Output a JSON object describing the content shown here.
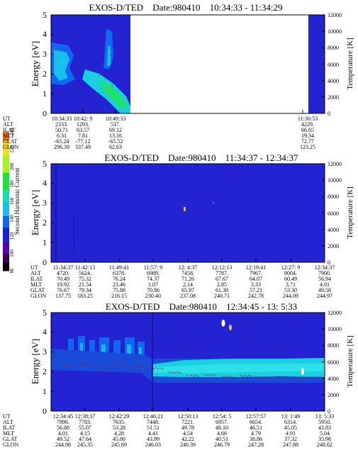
{
  "panels": [
    {
      "title_prefix": "EXOS-D/TED",
      "date_label": "Date:980410",
      "time_range": "10:34:33 - 11:34:29",
      "info_labels": [
        "UT",
        "ALT",
        "ILAT",
        "MLT",
        "GLAT",
        "GLON"
      ],
      "columns": [
        {
          "UT": "10:34:33",
          "ALT": "2333.",
          "ILAT": "50.71",
          "MLT": "6.31",
          "GLAT": "-65.24",
          "GLON": "296.39"
        },
        {
          "UT": "10:42: 9",
          "ALT": "1293.",
          "ILAT": "63.57",
          "MLT": "7.81",
          "GLAT": "-77.12",
          "GLON": "337.49"
        },
        {
          "UT": "10:49:33",
          "ALT": "537.",
          "ILAT": "69.12",
          "MLT": "13.16",
          "GLAT": "-65.52",
          "GLON": "62.63"
        },
        {
          "UT": "11:30:53",
          "ALT": "4229.",
          "ILAT": "66.65",
          "MLT": "19.34",
          "GLAT": "72.77",
          "GLON": "123.25"
        }
      ]
    },
    {
      "title_prefix": "EXOS-D/TED",
      "date_label": "Date:980410",
      "time_range": "11:34:37 - 12:34:37",
      "info_labels": [
        "UT",
        "ALT",
        "ILAT",
        "MLT",
        "GLAT",
        "GLON"
      ],
      "columns": [
        {
          "UT": "11:34:37",
          "ALT": "4720.",
          "ILAT": "70.49",
          "MLT": "19.92",
          "GLAT": "76.67",
          "GLON": "137.75"
        },
        {
          "UT": "11:42:13",
          "ALT": "5624.",
          "ILAT": "75.32",
          "MLT": "21.54",
          "GLAT": "79.34",
          "GLON": "183.25"
        },
        {
          "UT": "11:49:41",
          "ALT": "6378.",
          "ILAT": "76.24",
          "MLT": "23.46",
          "GLAT": "75.88",
          "GLON": "216.15"
        },
        {
          "UT": "11:57: 9",
          "ALT": "6989.",
          "ILAT": "74.37",
          "MLT": "1.07",
          "GLAT": "70.86",
          "GLON": "230.40"
        },
        {
          "UT": "12: 4:37",
          "ALT": "7458.",
          "ILAT": "71.26",
          "MLT": "2.14",
          "GLAT": "65.97",
          "GLON": "237.08"
        },
        {
          "UT": "12:12:13",
          "ALT": "7787.",
          "ILAT": "67.67",
          "MLT": "2.85",
          "GLAT": "61.38",
          "GLON": "240.71"
        },
        {
          "UT": "12:19:41",
          "ALT": "7967.",
          "ILAT": "64.07",
          "MLT": "3.33",
          "GLAT": "57.21",
          "GLON": "242.78"
        },
        {
          "UT": "12:27: 9",
          "ALT": "8004.",
          "ILAT": "60.49",
          "MLT": "3.71",
          "GLAT": "53.30",
          "GLON": "244.09"
        },
        {
          "UT": "12:34:37",
          "ALT": "7900.",
          "ILAT": "56.94",
          "MLT": "4.01",
          "GLAT": "49.58",
          "GLON": "244.97"
        }
      ]
    },
    {
      "title_prefix": "EXOS-D/TED",
      "date_label": "Date:980410",
      "time_range": "12:34:45 - 13: 5:33",
      "info_labels": [
        "UT",
        "ALT",
        "ILAT",
        "MLT",
        "GLAT",
        "GLON"
      ],
      "columns": [
        {
          "UT": "12:34:45",
          "ALT": "7896.",
          "ILAT": "56.88",
          "MLT": "4.01",
          "GLAT": "49.52",
          "GLON": "244.98"
        },
        {
          "UT": "12:38:37",
          "ALT": "7783.",
          "ILAT": "55.07",
          "MLT": "4.15",
          "GLAT": "47.64",
          "GLON": "245.35"
        },
        {
          "UT": "12:42:29",
          "ALT": "7635.",
          "ILAT": "53.28",
          "MLT": "4.28",
          "GLAT": "45.80",
          "GLON": "245.69"
        },
        {
          "UT": "12:46:21",
          "ALT": "7448.",
          "ILAT": "51.51",
          "MLT": "4.41",
          "GLAT": "43.99",
          "GLON": "246.03"
        },
        {
          "UT": "12:50:13",
          "ALT": "7221.",
          "ILAT": "49.78",
          "MLT": "4.54",
          "GLAT": "42.22",
          "GLON": "246.39"
        },
        {
          "UT": "12:54: 5",
          "ALT": "6957.",
          "ILAT": "48.10",
          "MLT": "4.66",
          "GLAT": "40.51",
          "GLON": "246.79"
        },
        {
          "UT": "12:57:57",
          "ALT": "6654.",
          "ILAT": "46.51",
          "MLT": "4.79",
          "GLAT": "38.86",
          "GLON": "247.28"
        },
        {
          "UT": "13: 1:49",
          "ALT": "6314.",
          "ILAT": "45.05",
          "MLT": "4.91",
          "GLAT": "37.32",
          "GLON": "247.88"
        },
        {
          "UT": "13: 5:33",
          "ALT": "5950.",
          "ILAT": "43.83",
          "MLT": "5.04",
          "GLAT": "35.98",
          "GLON": "248.62"
        }
      ]
    }
  ],
  "colorbar": {
    "label": "Second Harmonic Current",
    "ticks": [
      80,
      100,
      120,
      140,
      160,
      180,
      200,
      220,
      240
    ],
    "range": [
      80,
      240
    ]
  },
  "colors": {
    "background_field": "#2323d2",
    "band_cyan": "#18d0e0",
    "band_green": "#22e070",
    "mid_blue": "#1068f0",
    "dot_red": "#a01818",
    "white": "#ffffff"
  },
  "chart_data": [
    {
      "type": "heatmap",
      "title": "EXOS-D/TED   Date:980410   10:34:33 - 11:34:29",
      "ylabel": "Energy [eV]",
      "ylabel_right": "Temperature [K]",
      "ylim": [
        0,
        5
      ],
      "yticks": [
        0,
        1,
        2,
        3,
        4,
        5
      ],
      "ylim_right": [
        0,
        12000
      ],
      "yticks_right": [
        0,
        2000,
        4000,
        6000,
        8000,
        10000,
        12000
      ],
      "x_ticks": [
        "10:34:33",
        "10:42: 9",
        "10:49:33",
        "11:30:53"
      ],
      "data_gap": [
        "10:50:30",
        "11:30:53"
      ],
      "features": [
        {
          "name": "blue enhancement",
          "x_range": [
            "10:35",
            "10:39"
          ],
          "energy_range": [
            1.5,
            3.2
          ]
        },
        {
          "name": "green diagonal structure",
          "x_range": [
            "10:44",
            "10:50"
          ],
          "energy_range": [
            0.2,
            2.2
          ]
        }
      ]
    },
    {
      "type": "heatmap",
      "title": "EXOS-D/TED   Date:980410   11:34:37 - 12:34:37",
      "ylabel": "Energy [eV]",
      "ylabel_right": "Temperature [K]",
      "ylim": [
        0,
        5
      ],
      "yticks": [
        0,
        1,
        2,
        3,
        4,
        5
      ],
      "ylim_right": [
        0,
        12000
      ],
      "yticks_right": [
        0,
        2000,
        4000,
        6000,
        8000,
        10000,
        12000
      ],
      "x_ticks": [
        "11:34:37",
        "11:42:13",
        "11:49:41",
        "11:57: 9",
        "12: 4:37",
        "12:12:13",
        "12:19:41",
        "12:27: 9",
        "12:34:37"
      ],
      "features": [
        {
          "name": "uniform low level",
          "x_range": [
            "11:34:37",
            "12:34:37"
          ],
          "energy_range": [
            0,
            5
          ]
        }
      ]
    },
    {
      "type": "heatmap",
      "title": "EXOS-D/TED   Date:980410   12:34:45 - 13: 5:33",
      "ylabel": "Energy [eV]",
      "ylabel_right": "Temperature [K]",
      "ylim": [
        0,
        5
      ],
      "yticks": [
        0,
        1,
        2,
        3,
        4,
        5
      ],
      "ylim_right": [
        0,
        12000
      ],
      "yticks_right": [
        0,
        2000,
        4000,
        6000,
        8000,
        10000,
        12000
      ],
      "x_ticks": [
        "12:34:45",
        "12:38:37",
        "12:42:29",
        "12:46:21",
        "12:50:13",
        "12:54: 5",
        "12:57:57",
        "13: 1:49",
        "13: 5:33"
      ],
      "features": [
        {
          "name": "cyan band",
          "x_range": [
            "12:46:21",
            "13: 5:33"
          ],
          "energy_range": [
            1.8,
            2.6
          ]
        },
        {
          "name": "patchy band",
          "x_range": [
            "12:36",
            "12:46"
          ],
          "energy_range": [
            2.0,
            3.6
          ]
        }
      ],
      "temperature_points": {
        "series": "Temperature [K]",
        "x": [
          "12:36:00",
          "12:38:00",
          "12:40:00",
          "12:42:00",
          "12:44:00",
          "12:46:00",
          "12:48:00",
          "12:50:00",
          "12:52:00",
          "12:54:00",
          "12:56:00",
          "12:58:00",
          "13:00:00",
          "13:02:00",
          "13:04:00"
        ],
        "y": [
          5600,
          5800,
          5400,
          5700,
          5500,
          5300,
          4800,
          4400,
          4500,
          4300,
          4400,
          4200,
          4300,
          4100,
          4200
        ]
      }
    }
  ]
}
